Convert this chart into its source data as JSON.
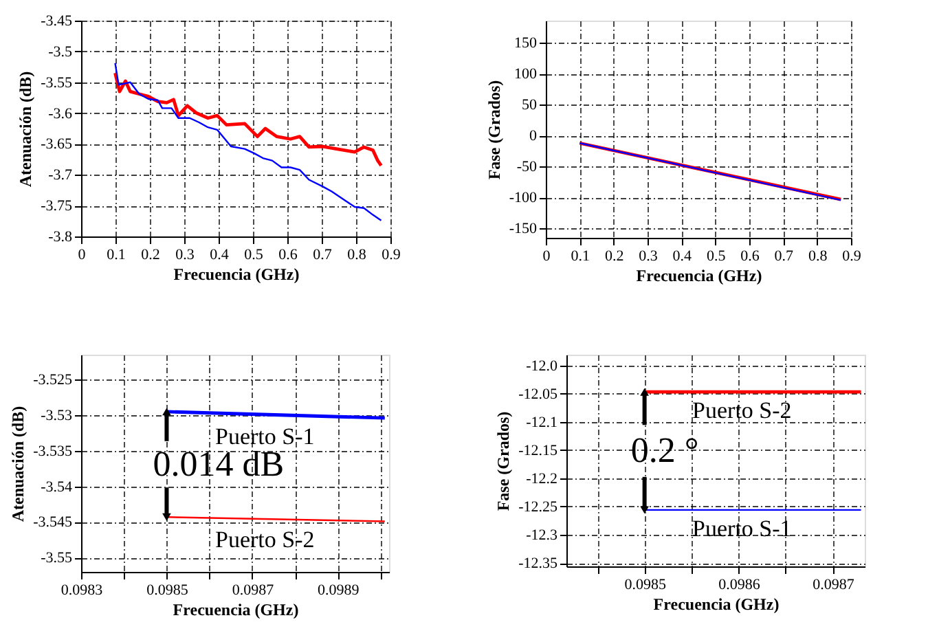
{
  "chart_data": [
    {
      "type": "line",
      "xlabel": "Frecuencia (GHz)",
      "ylabel": "Atenuación (dB)",
      "xlim": [
        0,
        0.9
      ],
      "ylim": [
        -3.8,
        -3.45
      ],
      "xticks": [
        0,
        0.1,
        0.2,
        0.3,
        0.4,
        0.5,
        0.6,
        0.7,
        0.8,
        0.9
      ],
      "yticks": [
        -3.8,
        -3.75,
        -3.7,
        -3.65,
        -3.6,
        -3.55,
        -3.5,
        -3.45
      ],
      "grid": true,
      "series": [
        {
          "color": "#ff0000",
          "x": [
            0.099,
            0.112,
            0.129,
            0.143,
            0.169,
            0.196,
            0.223,
            0.249,
            0.269,
            0.283,
            0.309,
            0.336,
            0.369,
            0.396,
            0.423,
            0.476,
            0.513,
            0.536,
            0.569,
            0.609,
            0.636,
            0.663,
            0.703,
            0.743,
            0.796,
            0.823,
            0.849,
            0.863,
            0.873
          ],
          "values": [
            -3.535,
            -3.565,
            -3.548,
            -3.565,
            -3.569,
            -3.573,
            -3.581,
            -3.583,
            -3.578,
            -3.604,
            -3.588,
            -3.6,
            -3.608,
            -3.604,
            -3.619,
            -3.617,
            -3.638,
            -3.625,
            -3.638,
            -3.642,
            -3.638,
            -3.655,
            -3.654,
            -3.658,
            -3.663,
            -3.655,
            -3.66,
            -3.677,
            -3.685
          ]
        },
        {
          "color": "#0000ff",
          "x": [
            0.099,
            0.109,
            0.143,
            0.169,
            0.196,
            0.223,
            0.236,
            0.263,
            0.283,
            0.316,
            0.343,
            0.369,
            0.396,
            0.436,
            0.476,
            0.503,
            0.529,
            0.556,
            0.583,
            0.609,
            0.636,
            0.663,
            0.703,
            0.729,
            0.769,
            0.796,
            0.823,
            0.849,
            0.873
          ],
          "values": [
            -3.519,
            -3.554,
            -3.55,
            -3.569,
            -3.577,
            -3.579,
            -3.592,
            -3.592,
            -3.608,
            -3.608,
            -3.615,
            -3.623,
            -3.627,
            -3.654,
            -3.658,
            -3.665,
            -3.673,
            -3.677,
            -3.688,
            -3.688,
            -3.692,
            -3.708,
            -3.719,
            -3.727,
            -3.742,
            -3.752,
            -3.754,
            -3.765,
            -3.774
          ]
        }
      ]
    },
    {
      "type": "line",
      "xlabel": "Frecuencia (GHz)",
      "ylabel": "Fase (Grados)",
      "xlim": [
        0,
        0.9
      ],
      "ylim": [
        -165,
        186
      ],
      "xticks": [
        0,
        0.1,
        0.2,
        0.3,
        0.4,
        0.5,
        0.6,
        0.7,
        0.8,
        0.9
      ],
      "yticks": [
        -150,
        -100,
        -50,
        0,
        50,
        100,
        150
      ],
      "grid": true,
      "series": [
        {
          "color": "#ff0000",
          "x": [
            0.1,
            0.87
          ],
          "values": [
            -12,
            -103
          ]
        },
        {
          "color": "#0000ff",
          "x": [
            0.1,
            0.87
          ],
          "values": [
            -12,
            -104
          ]
        }
      ]
    },
    {
      "type": "line",
      "xlabel": "Frecuencia (GHz)",
      "ylabel": "Atenuación (dB)",
      "xlim": [
        0.0983,
        0.09902
      ],
      "ylim": [
        -3.552,
        -3.5215
      ],
      "xticks": [
        0.0983,
        {
          "value": 0.0984,
          "label": null
        },
        0.0985,
        {
          "value": 0.0986,
          "label": null
        },
        0.0987,
        {
          "value": 0.0988,
          "label": null
        },
        0.0989,
        {
          "value": 0.099,
          "label": null
        }
      ],
      "yticks": [
        -3.55,
        -3.545,
        -3.54,
        -3.535,
        -3.53,
        -3.525
      ],
      "grid": true,
      "series": [
        {
          "name": "Puerto S-1",
          "color": "#0000ff",
          "x": [
            0.0985,
            0.09901
          ],
          "values": [
            -3.5295,
            -3.5304
          ]
        },
        {
          "name": "Puerto S-2",
          "color": "#ff0000",
          "x": [
            0.0985,
            0.09901
          ],
          "values": [
            -3.5443,
            -3.5449
          ]
        }
      ],
      "annotations": [
        "0.014 dB"
      ]
    },
    {
      "type": "line",
      "xlabel": "Frecuencia (GHz)",
      "ylabel": "Fase (Grados)",
      "xlim": [
        0.098417,
        0.098734
      ],
      "ylim": [
        -12.356,
        -11.981
      ],
      "xticks": [
        {
          "value": 0.09845,
          "label": null
        },
        0.0985,
        {
          "value": 0.09855,
          "label": null
        },
        0.0986,
        {
          "value": 0.09865,
          "label": null
        },
        0.0987
      ],
      "yticks": [
        -12.35,
        -12.3,
        -12.25,
        -12.2,
        -12.15,
        -12.1,
        -12.05,
        {
          "value": -12.0,
          "label": "-12.0"
        }
      ],
      "grid": true,
      "series": [
        {
          "name": "Puerto S-2",
          "color": "#ff0000",
          "x": [
            0.0985,
            0.09873
          ],
          "values": [
            -12.047,
            -12.047
          ]
        },
        {
          "name": "Puerto S-1",
          "color": "#0000ff",
          "x": [
            0.0985,
            0.09873
          ],
          "values": [
            -12.256,
            -12.256
          ]
        }
      ],
      "annotations": [
        "0.2 °"
      ]
    }
  ]
}
